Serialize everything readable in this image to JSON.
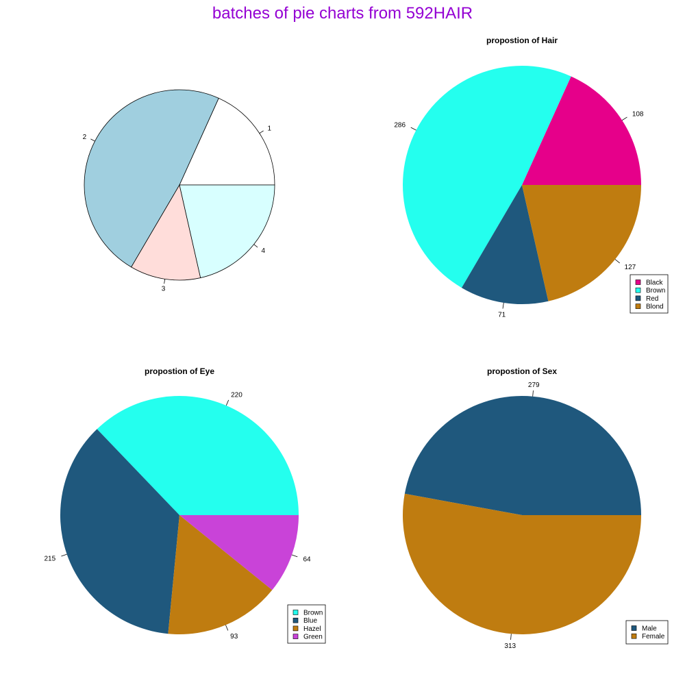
{
  "figure": {
    "title": "batches of pie charts from 592HAIR",
    "title_color": "#9400D3"
  },
  "chart_data": [
    {
      "type": "pie",
      "title": "",
      "labels": [
        "1",
        "2",
        "3",
        "4"
      ],
      "values": [
        108,
        286,
        71,
        127
      ],
      "colors": [
        "#FFFFFF",
        "#A0CFDF",
        "#FFDDDA",
        "#D8FFFF"
      ],
      "legend": null
    },
    {
      "type": "pie",
      "title": "propostion of Hair",
      "labels": [
        "108",
        "286",
        "71",
        "127"
      ],
      "values": [
        108,
        286,
        71,
        127
      ],
      "legend_labels": [
        "Black",
        "Brown",
        "Red",
        "Blond"
      ],
      "colors": [
        "#E6008A",
        "#24FFEE",
        "#1F587D",
        "#BF7C10"
      ],
      "legend": "bottom-right"
    },
    {
      "type": "pie",
      "title": "propostion of Eye",
      "labels": [
        "220",
        "215",
        "93",
        "64"
      ],
      "values": [
        220,
        215,
        93,
        64
      ],
      "legend_labels": [
        "Brown",
        "Blue",
        "Hazel",
        "Green"
      ],
      "colors": [
        "#24FFEE",
        "#1F587D",
        "#BF7C10",
        "#C943D8"
      ],
      "legend": "bottom-right"
    },
    {
      "type": "pie",
      "title": "propostion of Sex",
      "labels": [
        "279",
        "313"
      ],
      "values": [
        279,
        313
      ],
      "legend_labels": [
        "Male",
        "Female"
      ],
      "colors": [
        "#1F587D",
        "#BF7C10"
      ],
      "legend": "bottom-right"
    }
  ]
}
